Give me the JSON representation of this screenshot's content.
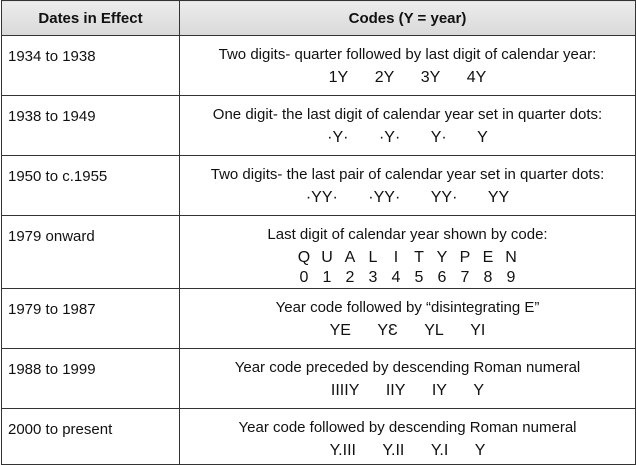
{
  "table": {
    "headers": [
      "Dates in Effect",
      "Codes (Y = year)"
    ],
    "rows": [
      {
        "dates": "1934 to 1938",
        "desc": "Two digits- quarter followed by last digit of calendar year:",
        "samples": [
          "1Y",
          "2Y",
          "3Y",
          "4Y"
        ]
      },
      {
        "dates": "1938 to 1949",
        "desc": "One digit- the last digit of calendar year set in quarter dots:",
        "samples": [
          "·Y·",
          "·Y·",
          "Y·",
          "Y"
        ]
      },
      {
        "dates": "1950 to c.1955",
        "desc": "Two digits- the last pair of calendar year set in quarter dots:",
        "samples": [
          "·YY·",
          "·YY·",
          "YY·",
          "YY"
        ]
      },
      {
        "dates": "1979 onward",
        "desc": "Last digit of calendar year shown by code:",
        "letters": [
          "Q",
          "U",
          "A",
          "L",
          "I",
          "T",
          "Y",
          "P",
          "E",
          "N"
        ],
        "digits": [
          "0",
          "1",
          "2",
          "3",
          "4",
          "5",
          "6",
          "7",
          "8",
          "9"
        ]
      },
      {
        "dates": "1979 to 1987",
        "desc": "Year code followed by “disintegrating E”",
        "samples": [
          "YE",
          "YƐ",
          "YL",
          "YI"
        ]
      },
      {
        "dates": "1988 to 1999",
        "desc": "Year code preceded by descending Roman numeral",
        "samples": [
          "IIIIY",
          "IIY",
          "IY",
          "Y"
        ]
      },
      {
        "dates": "2000 to present",
        "desc": "Year code followed by descending Roman numeral",
        "samples": [
          "Y.III",
          "Y.II",
          "Y.I",
          "Y"
        ]
      }
    ]
  }
}
